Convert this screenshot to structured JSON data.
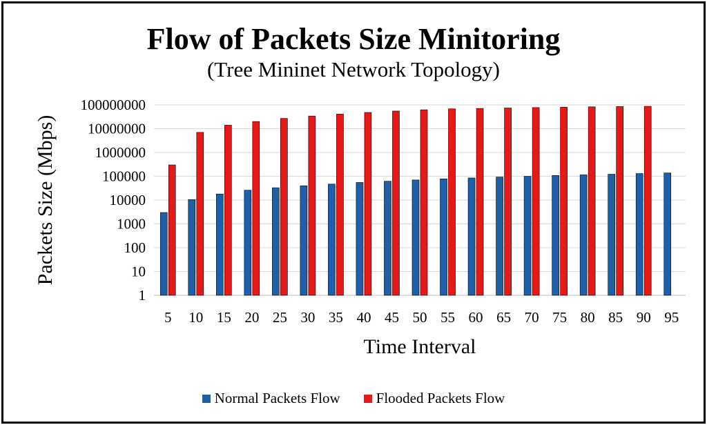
{
  "chart_data": {
    "type": "bar",
    "title": "Flow of Packets Size Minitoring",
    "subtitle": "(Tree Mininet Network Topology)",
    "xlabel": "Time Interval",
    "ylabel": "Packets Size (Mbps)",
    "yscale": "log",
    "ylim": [
      1,
      100000000
    ],
    "yticks": [
      "1",
      "10",
      "100",
      "1000",
      "10000",
      "100000",
      "1000000",
      "10000000",
      "100000000"
    ],
    "categories": [
      "5",
      "10",
      "15",
      "20",
      "25",
      "30",
      "35",
      "40",
      "45",
      "50",
      "55",
      "60",
      "65",
      "70",
      "75",
      "80",
      "85",
      "90",
      "95"
    ],
    "series": [
      {
        "name": "Normal Packets Flow",
        "color": "#1F5FA8",
        "values": [
          3000,
          10500,
          18000,
          26000,
          33000,
          40000,
          47000,
          55000,
          62000,
          70000,
          78000,
          85000,
          93000,
          100000,
          108000,
          115000,
          122000,
          130000,
          138000
        ]
      },
      {
        "name": "Flooded Packets Flow",
        "color": "#E81818",
        "values": [
          300000,
          7000000,
          14000000,
          20000000,
          27000000,
          34000000,
          41000000,
          48000000,
          55000000,
          62000000,
          68000000,
          71000000,
          74000000,
          77000000,
          80000000,
          83000000,
          85000000,
          87000000,
          null
        ]
      }
    ],
    "legend_position": "bottom",
    "grid": true
  }
}
